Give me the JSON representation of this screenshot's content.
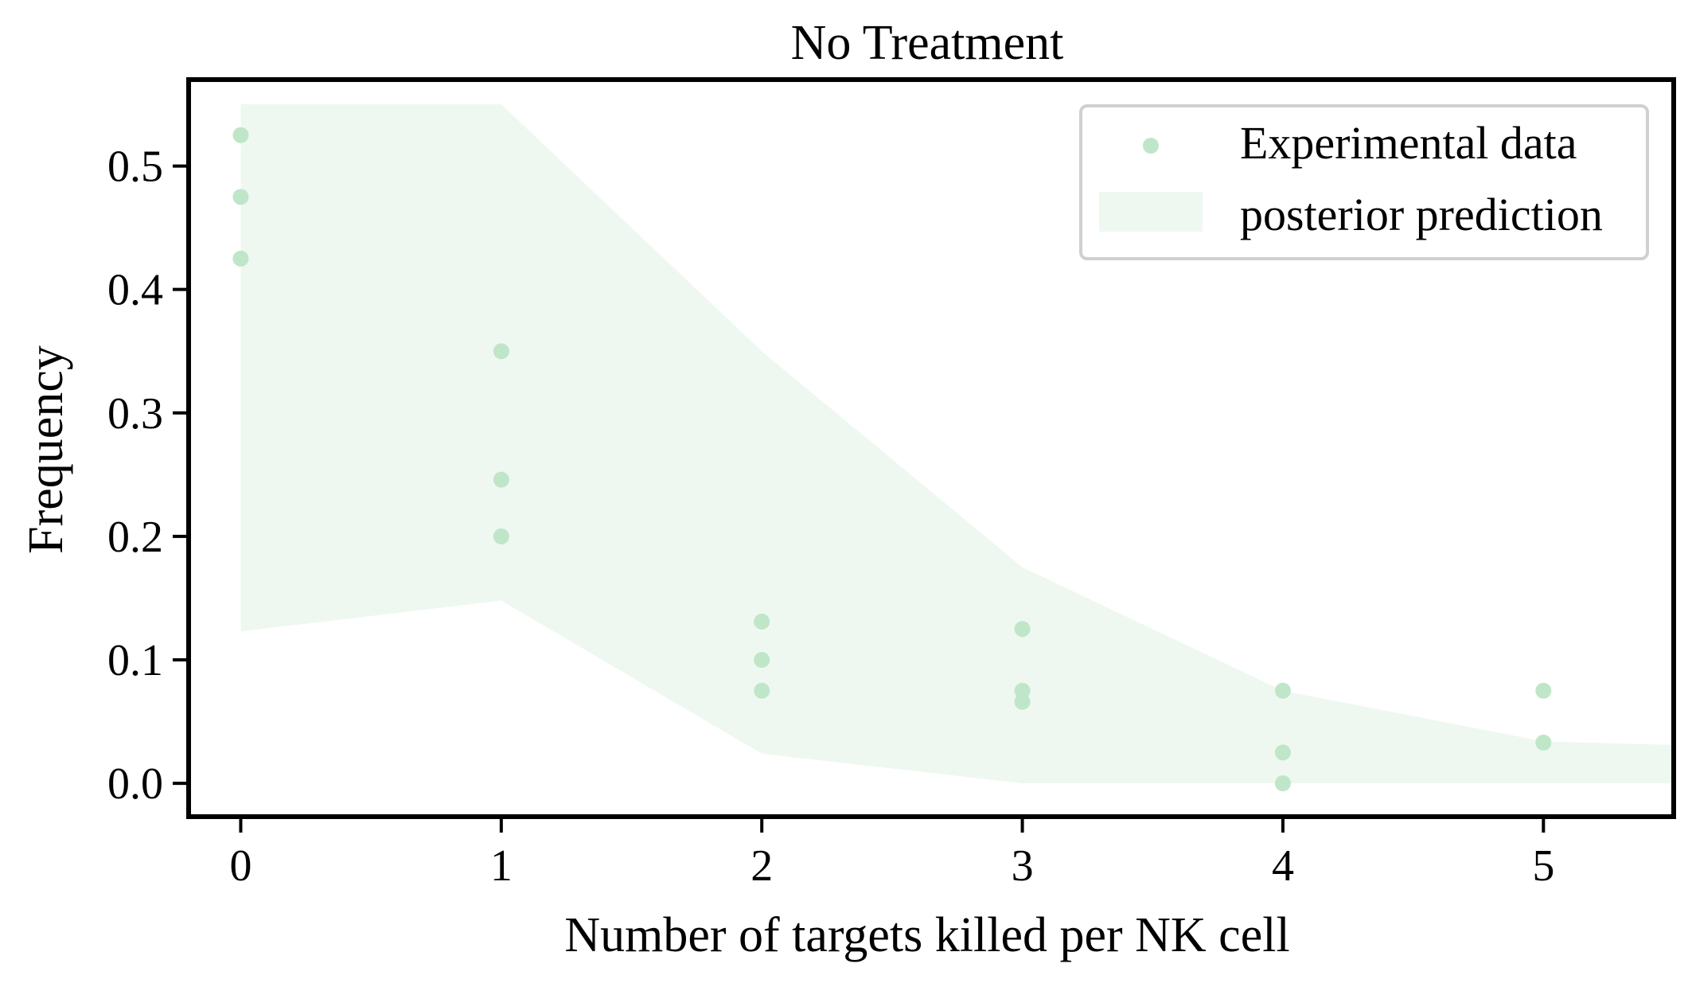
{
  "chart_data": {
    "type": "scatter",
    "title": "No Treatment",
    "xlabel": "Number of targets killed per NK cell",
    "ylabel": "Frequency",
    "xlim": [
      -0.2,
      5.5
    ],
    "ylim": [
      -0.027,
      0.57
    ],
    "x_ticks": [
      "0",
      "1",
      "2",
      "3",
      "4",
      "5"
    ],
    "y_ticks": [
      "0.0",
      "0.1",
      "0.2",
      "0.3",
      "0.4",
      "0.5"
    ],
    "grid": false,
    "legend_position": "top-right",
    "colors": {
      "points": "#bfe6c8",
      "band": "#eef8f0",
      "axes": "#000000",
      "legend_border": "#d0d0d0"
    },
    "series": [
      {
        "name": "Experimental data",
        "type": "scatter",
        "points": [
          {
            "x": 0,
            "y": 0.525
          },
          {
            "x": 0,
            "y": 0.475
          },
          {
            "x": 0,
            "y": 0.425
          },
          {
            "x": 1,
            "y": 0.35
          },
          {
            "x": 1,
            "y": 0.246
          },
          {
            "x": 1,
            "y": 0.2
          },
          {
            "x": 2,
            "y": 0.131
          },
          {
            "x": 2,
            "y": 0.1
          },
          {
            "x": 2,
            "y": 0.075
          },
          {
            "x": 3,
            "y": 0.125
          },
          {
            "x": 3,
            "y": 0.075
          },
          {
            "x": 3,
            "y": 0.066
          },
          {
            "x": 4,
            "y": 0.075
          },
          {
            "x": 4,
            "y": 0.025
          },
          {
            "x": 4,
            "y": 0.0
          },
          {
            "x": 5,
            "y": 0.075
          },
          {
            "x": 5,
            "y": 0.033
          }
        ]
      },
      {
        "name": "posterior prediction",
        "type": "band",
        "x": [
          0,
          1,
          2,
          3,
          4,
          5,
          5.5
        ],
        "lower": [
          0.123,
          0.148,
          0.024,
          0.0,
          0.0,
          0.0,
          0.0
        ],
        "upper": [
          0.55,
          0.55,
          0.35,
          0.175,
          0.075,
          0.034,
          0.031
        ]
      }
    ]
  }
}
